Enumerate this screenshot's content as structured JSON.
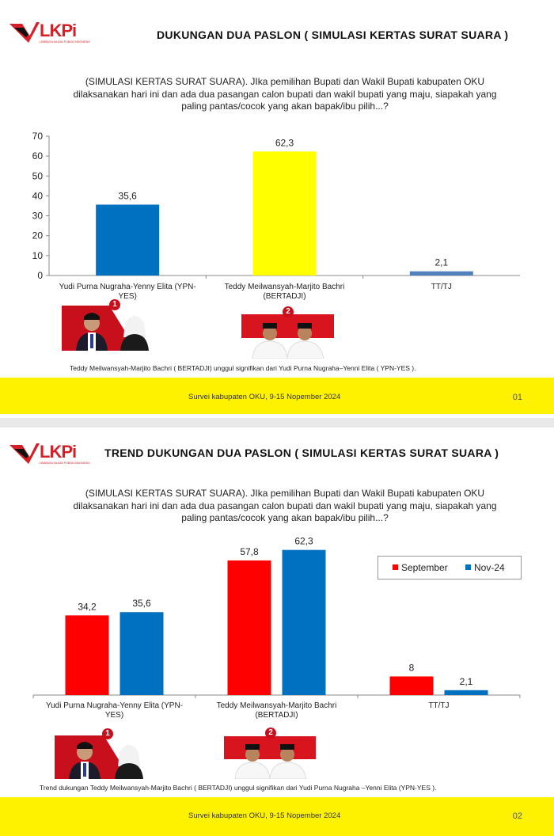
{
  "brand": {
    "logo_text": "LKPi",
    "logo_sub": "LEMBAGA KAJIAN PUBLIK INDONESIA"
  },
  "colors": {
    "red": "#ff0000",
    "blue": "#0070c0",
    "yellow": "#ffff00",
    "steel_blue": "#4f81bd",
    "footer": "#fff200"
  },
  "question": "(SIMULASI KERTAS SURAT SUARA). JIka pemilihan Bupati dan Wakil Bupati kabupaten OKU dilaksanakan hari ini dan ada dua pasangan calon bupati dan wakil bupati yang maju, siapakah yang paling pantas/cocok yang akan bapak/ibu pilih...?",
  "slide1": {
    "title": "DUKUNGAN DUA  PASLON ( SIMULASI KERTAS SURAT SUARA )",
    "note": "Teddy Meilwansyah-Marjito Bachri ( BERTADJI)      unggul signifikan dari   Yudi Purna Nugraha–Yenni Elita ( YPN-YES    ).",
    "footer": "Survei kabupaten OKU, 9-15 Nopember 2024",
    "page": "01",
    "badge1": "1",
    "badge2": "2"
  },
  "slide2": {
    "title": "TREND DUKUNGAN DUA PASLON ( SIMULASI KERTAS SURAT SUARA )",
    "note": "Trend dukungan Teddy Meilwansyah-Marjito Bachri ( BERTADJI)   unggul signifikan dari    Yudi Purna Nugraha –Yenni Elita (YPN-YES    ).",
    "footer": "Survei kabupaten OKU, 9-15 Nopember 2024",
    "page": "02",
    "badge1": "1",
    "badge2": "2"
  },
  "chart_data": [
    {
      "type": "bar",
      "categories": [
        [
          "Yudi Purna Nugraha-Yenny Elita (YPN-",
          "YES)"
        ],
        [
          "Teddy Meilwansyah-Marjito Bachri",
          "(BERTADJI)"
        ],
        [
          "TT/TJ"
        ]
      ],
      "values": [
        35.6,
        62.3,
        2.1
      ],
      "value_labels": [
        "35,6",
        "62,3",
        "2,1"
      ],
      "bar_colors": [
        "#0070c0",
        "#ffff00",
        "#4f81bd"
      ],
      "yticks": [
        "0",
        "10",
        "20",
        "30",
        "40",
        "50",
        "60",
        "70"
      ],
      "ylim": [
        0,
        70
      ],
      "grid": false
    },
    {
      "type": "bar",
      "categories": [
        [
          "Yudi Purna Nugraha-Yenny Elita (YPN-",
          "YES)"
        ],
        [
          "Teddy Meilwansyah-Marjito Bachri",
          "(BERTADJI)"
        ],
        [
          "TT/TJ"
        ]
      ],
      "series": [
        {
          "name": "September",
          "color": "#ff0000",
          "values": [
            34.2,
            57.8,
            8
          ],
          "value_labels": [
            "34,2",
            "57,8",
            "8"
          ]
        },
        {
          "name": "Nov-24",
          "color": "#0070c0",
          "values": [
            35.6,
            62.3,
            2.1
          ],
          "value_labels": [
            "35,6",
            "62,3",
            "2,1"
          ]
        }
      ],
      "ylim": [
        0,
        70
      ],
      "legend": "top-right",
      "grid": false
    }
  ]
}
